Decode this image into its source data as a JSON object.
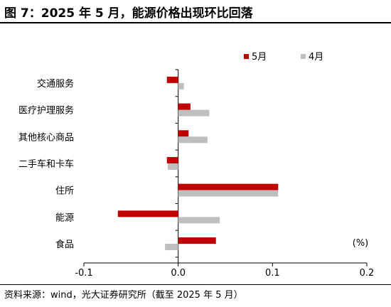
{
  "header": {
    "title": "图 7：2025 年 5 月，能源价格出现环比回落"
  },
  "footer": {
    "source": "资料来源：wind，光大证券研究所（截至 2025 年 5 月）"
  },
  "chart_data": {
    "type": "bar",
    "orientation": "horizontal",
    "categories": [
      "交通服务",
      "医疗护理服务",
      "其他核心商品",
      "二手车和卡车",
      "住所",
      "能源",
      "食品"
    ],
    "series": [
      {
        "name": "5月",
        "color": "#c00000",
        "values": [
          -0.012,
          0.013,
          0.011,
          -0.012,
          0.106,
          -0.064,
          0.04
        ]
      },
      {
        "name": "4月",
        "color": "#bfbfbf",
        "values": [
          0.006,
          0.033,
          0.031,
          -0.011,
          0.106,
          0.044,
          -0.014
        ]
      }
    ],
    "xlim": [
      -0.1,
      0.2
    ],
    "xticks": [
      "-0.1",
      "0.0",
      "0.1",
      "0.2"
    ],
    "unit_label": "(%)",
    "legend_position": "top-right",
    "grid": false
  }
}
